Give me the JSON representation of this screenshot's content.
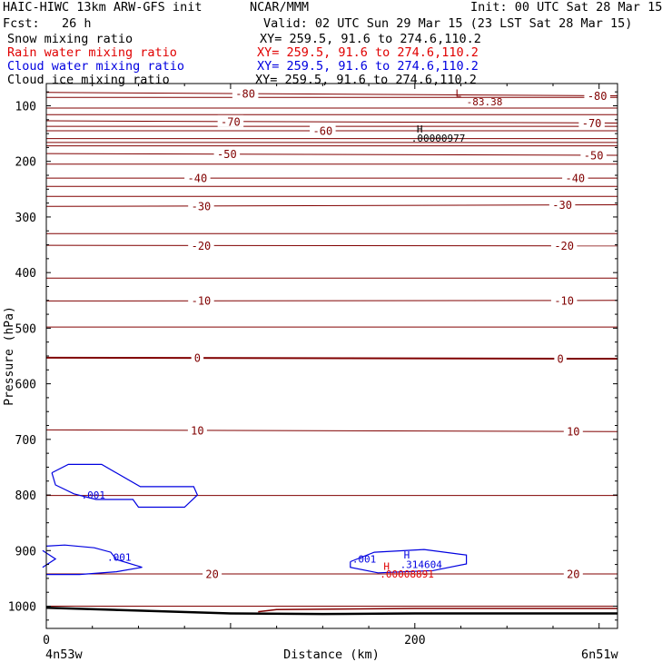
{
  "header": {
    "model": "HAIC-HIWC 13km ARW-GFS init",
    "center": "NCAR/MMM",
    "init": "Init: 00 UTC Sat 28 Mar 15",
    "fcst": "Fcst:   26 h",
    "valid": "Valid: 02 UTC Sun 29 Mar 15 (23 LST Sat 28 Mar 15)",
    "fields": [
      {
        "name": "Snow mixing ratio",
        "xy": "XY= 259.5, 91.6 to 274.6,110.2",
        "color": "#000000"
      },
      {
        "name": "Rain water mixing ratio",
        "xy": "XY= 259.5, 91.6 to 274.6,110.2",
        "color": "#e00000"
      },
      {
        "name": "Cloud water mixing ratio",
        "xy": "XY= 259.5, 91.6 to 274.6,110.2",
        "color": "#0000e0"
      },
      {
        "name": "Cloud ice mixing ratio",
        "xy": "XY= 259.5, 91.6 to 274.6,110.2",
        "color": "#000000"
      }
    ]
  },
  "chart_data": {
    "type": "line",
    "xlabel": "Distance (km)",
    "ylabel": "Pressure (hPa)",
    "xlim": [
      0,
      310
    ],
    "ylim": [
      1040,
      60
    ],
    "x_ticks": [
      0,
      200
    ],
    "x_tick_labels": [
      "0",
      "200"
    ],
    "y_ticks": [
      100,
      200,
      300,
      400,
      500,
      600,
      700,
      800,
      900,
      1000
    ],
    "x_endpoint_labels": [
      "4n53w",
      "6n51w"
    ],
    "temperature_color": "#800000",
    "cloud_color": "#0000e0",
    "rain_color": "#e00000",
    "terrain_color": "#000000",
    "temperature_contours": [
      {
        "label": "-80",
        "left": 76,
        "right": 82,
        "labels_at": [
          108,
          299
        ]
      },
      {
        "label": "-70",
        "left": 127,
        "right": 131,
        "labels_at": [
          100,
          296
        ]
      },
      {
        "label": "-60",
        "left": 145,
        "right": 145,
        "labels_at": [
          150
        ]
      },
      {
        "label": "-50",
        "left": 186,
        "right": 189,
        "labels_at": [
          98,
          297
        ]
      },
      {
        "label": "-40",
        "left": 230,
        "right": 230,
        "labels_at": [
          82,
          287
        ]
      },
      {
        "label": "-30",
        "left": 281,
        "right": 278,
        "labels_at": [
          84,
          280
        ]
      },
      {
        "label": "-20",
        "left": 351,
        "right": 352,
        "labels_at": [
          84,
          281
        ]
      },
      {
        "label": "-10",
        "left": 451,
        "right": 450,
        "labels_at": [
          84,
          281
        ]
      },
      {
        "label": "0",
        "left": 553,
        "right": 555,
        "labels_at": [
          82,
          279
        ]
      },
      {
        "label": "10",
        "left": 683,
        "right": 686,
        "labels_at": [
          82,
          286
        ]
      },
      {
        "label": "20",
        "left": 942,
        "right": 942,
        "labels_at": [
          90,
          286
        ]
      }
    ],
    "extra_isotherms": [
      85,
      104,
      116,
      137,
      159,
      166,
      172,
      205,
      245,
      263,
      330,
      410,
      498,
      801,
      1000
    ],
    "annotations": [
      {
        "text": "L",
        "x": 222,
        "p": 77,
        "color": "#800000"
      },
      {
        "text": "-83.38",
        "x": 228,
        "p": 93,
        "color": "#800000"
      },
      {
        "text": "H",
        "x": 201,
        "p": 142,
        "color": "#000000"
      },
      {
        "text": ".00000977",
        "x": 198,
        "p": 158,
        "color": "#000000"
      },
      {
        "text": ".001",
        "x": 19,
        "p": 800,
        "color": "#0000e0"
      },
      {
        "text": ".001",
        "x": 33,
        "p": 912,
        "color": "#0000e0"
      },
      {
        "text": ".001",
        "x": 166,
        "p": 915,
        "color": "#0000e0"
      },
      {
        "text": "H",
        "x": 194,
        "p": 908,
        "color": "#0000e0"
      },
      {
        "text": ".314604",
        "x": 192,
        "p": 925,
        "color": "#0000e0"
      },
      {
        "text": "H",
        "x": 183,
        "p": 928,
        "color": "#e00000"
      },
      {
        "text": ".00008891",
        "x": 181,
        "p": 942,
        "color": "#e00000"
      }
    ],
    "cloud_contours": [
      {
        "label": ".001",
        "points": [
          [
            3,
            760
          ],
          [
            12,
            745
          ],
          [
            30,
            745
          ],
          [
            51,
            785
          ],
          [
            80,
            785
          ],
          [
            82,
            800
          ],
          [
            75,
            822
          ],
          [
            50,
            822
          ],
          [
            47,
            808
          ],
          [
            27,
            808
          ],
          [
            15,
            798
          ],
          [
            5,
            782
          ],
          [
            3,
            760
          ]
        ]
      },
      {
        "label": ".001",
        "points": [
          [
            0,
            892
          ],
          [
            10,
            890
          ],
          [
            26,
            895
          ],
          [
            35,
            903
          ],
          [
            38,
            916
          ],
          [
            52,
            930
          ],
          [
            38,
            938
          ],
          [
            18,
            943
          ],
          [
            0,
            943
          ]
        ]
      },
      {
        "label": ".001",
        "points": [
          [
            -2,
            900
          ],
          [
            5,
            915
          ],
          [
            -2,
            930
          ]
        ]
      },
      {
        "label": ".001",
        "points": [
          [
            165,
            920
          ],
          [
            178,
            903
          ],
          [
            205,
            898
          ],
          [
            228,
            908
          ],
          [
            228,
            924
          ],
          [
            210,
            936
          ],
          [
            180,
            940
          ],
          [
            165,
            930
          ],
          [
            165,
            920
          ]
        ]
      }
    ],
    "terrain": [
      [
        0,
        1003
      ],
      [
        50,
        1008
      ],
      [
        100,
        1013
      ],
      [
        150,
        1014
      ],
      [
        200,
        1013
      ],
      [
        250,
        1013
      ],
      [
        310,
        1013
      ]
    ],
    "terrain_upper": [
      [
        115,
        1010
      ],
      [
        125,
        1006
      ],
      [
        200,
        1004
      ],
      [
        310,
        1004
      ]
    ]
  }
}
